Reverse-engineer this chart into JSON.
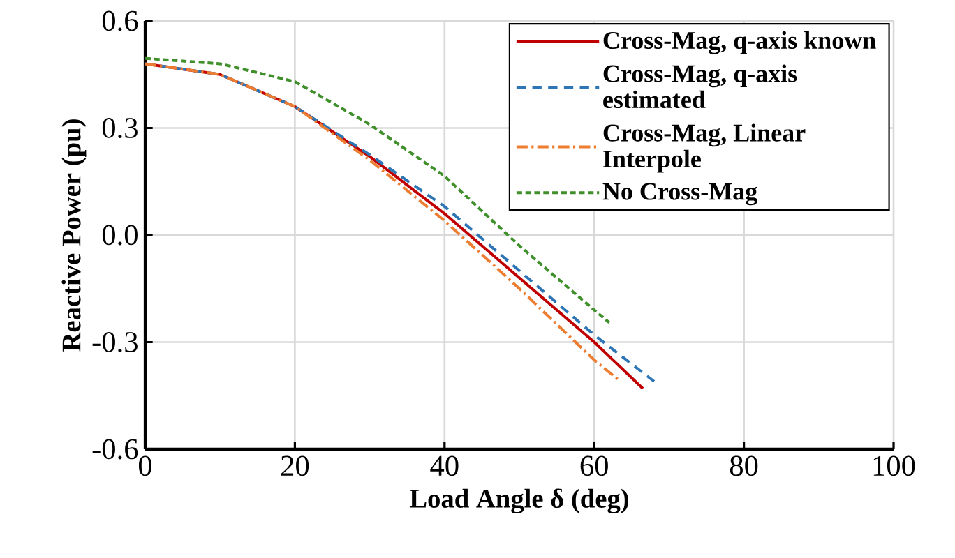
{
  "chart_data": {
    "type": "line",
    "xlabel": "Load Angle δ (deg)",
    "ylabel": "Reactive Power (pu)",
    "xlim": [
      0,
      100
    ],
    "xticks": [
      0,
      20,
      40,
      60,
      80,
      100
    ],
    "ylim": [
      -0.6,
      0.6
    ],
    "yticks": [
      {
        "value": -0.6,
        "label": "-0.6"
      },
      {
        "value": -0.3,
        "label": "-0.3"
      },
      {
        "value": 0,
        "label": "0.0"
      },
      {
        "value": 0.3,
        "label": "0.3"
      },
      {
        "value": 0.6,
        "label": "0.6"
      }
    ],
    "grid": true,
    "legend": "top right",
    "series": [
      {
        "name": "Cross-Mag, q-axis known",
        "color": "#c00000",
        "line_style": "solid",
        "x": [
          0,
          10,
          20,
          30,
          40,
          50,
          60,
          66.5
        ],
        "values": [
          0.48,
          0.45,
          0.36,
          0.22,
          0.06,
          -0.12,
          -0.3,
          -0.43
        ]
      },
      {
        "name": "Cross-Mag, q-axis estimated",
        "color": "#2e75b6",
        "line_style": "dashed",
        "x": [
          0,
          10,
          20,
          30,
          40,
          50,
          60,
          68
        ],
        "values": [
          0.48,
          0.45,
          0.36,
          0.225,
          0.08,
          -0.1,
          -0.28,
          -0.41
        ]
      },
      {
        "name": "Cross-Mag, Linear Interpole",
        "color": "#ed7d31",
        "line_style": "dashdot",
        "x": [
          0,
          10,
          20,
          30,
          40,
          50,
          60,
          63.5
        ],
        "values": [
          0.48,
          0.45,
          0.36,
          0.21,
          0.04,
          -0.15,
          -0.35,
          -0.41
        ]
      },
      {
        "name": "No Cross-Mag",
        "color": "#3f8f2a",
        "line_style": "dotted",
        "x": [
          0,
          10,
          20,
          30,
          40,
          50,
          60,
          62
        ],
        "values": [
          0.495,
          0.48,
          0.43,
          0.31,
          0.165,
          -0.03,
          -0.21,
          -0.245
        ]
      }
    ]
  }
}
